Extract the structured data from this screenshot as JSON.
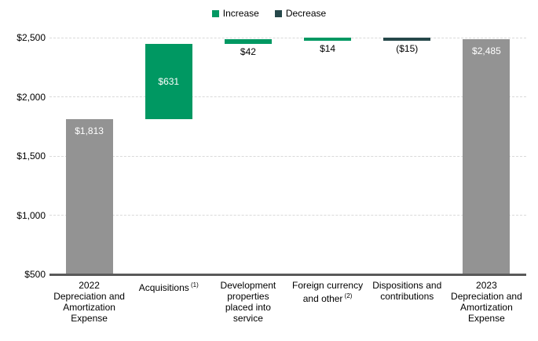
{
  "legend": {
    "items": [
      {
        "label": "Increase",
        "color_key": "increase"
      },
      {
        "label": "Decrease",
        "color_key": "decrease"
      }
    ]
  },
  "chart_data": {
    "type": "bar",
    "subtype": "waterfall",
    "title": "",
    "xlabel": "",
    "ylabel": "",
    "grid": "dashed-horizontal",
    "legend_position": "top-center",
    "y_axis": {
      "min": 500,
      "max": 2500,
      "ticks": [
        {
          "value": 500,
          "label": "$500"
        },
        {
          "value": 1000,
          "label": "$1,000"
        },
        {
          "value": 1500,
          "label": "$1,500"
        },
        {
          "value": 2000,
          "label": "$2,000"
        },
        {
          "value": 2500,
          "label": "$2,500"
        }
      ]
    },
    "bars": [
      {
        "category": "2022 Depreciation and Amortization Expense",
        "category_lines": [
          "2022",
          "Depreciation and",
          "Amortization",
          "Expense"
        ],
        "category_sup": "",
        "value_label": "$1,813",
        "from": 500,
        "to": 1813,
        "color_key": "neutral",
        "label_position": "inside-top",
        "label_color": "#ffffff"
      },
      {
        "category": "Acquisitions",
        "category_lines": [
          "Acquisitions"
        ],
        "category_sup": "(1)",
        "value_label": "$631",
        "from": 1813,
        "to": 2444,
        "color_key": "increase",
        "label_position": "inside-center",
        "label_color": "#ffffff"
      },
      {
        "category": "Development properties placed into service",
        "category_lines": [
          "Development",
          "properties",
          "placed into",
          "service"
        ],
        "category_sup": "",
        "value_label": "$42",
        "from": 2444,
        "to": 2486,
        "color_key": "increase",
        "label_position": "below",
        "label_color": "#000000"
      },
      {
        "category": "Foreign currency and other",
        "category_lines": [
          "Foreign currency",
          "and other"
        ],
        "category_sup": "(2)",
        "value_label": "$14",
        "from": 2486,
        "to": 2500,
        "color_key": "increase",
        "label_position": "below",
        "label_color": "#000000"
      },
      {
        "category": "Dispositions and contributions",
        "category_lines": [
          "Dispositions and",
          "contributions"
        ],
        "category_sup": "",
        "value_label": "($15)",
        "from": 2485,
        "to": 2500,
        "color_key": "decrease",
        "label_position": "below",
        "label_color": "#000000"
      },
      {
        "category": "2023 Depreciation and Amortization Expense",
        "category_lines": [
          "2023",
          "Depreciation and",
          "Amortization",
          "Expense"
        ],
        "category_sup": "",
        "value_label": "$2,485",
        "from": 500,
        "to": 2485,
        "color_key": "neutral",
        "label_position": "inside-top",
        "label_color": "#ffffff"
      }
    ],
    "colors": {
      "increase": "#009862",
      "decrease": "#26484a",
      "neutral": "#939393",
      "axis_line": "#595959",
      "gridline": "#d9d9d9",
      "tick_text": "#000000"
    }
  }
}
